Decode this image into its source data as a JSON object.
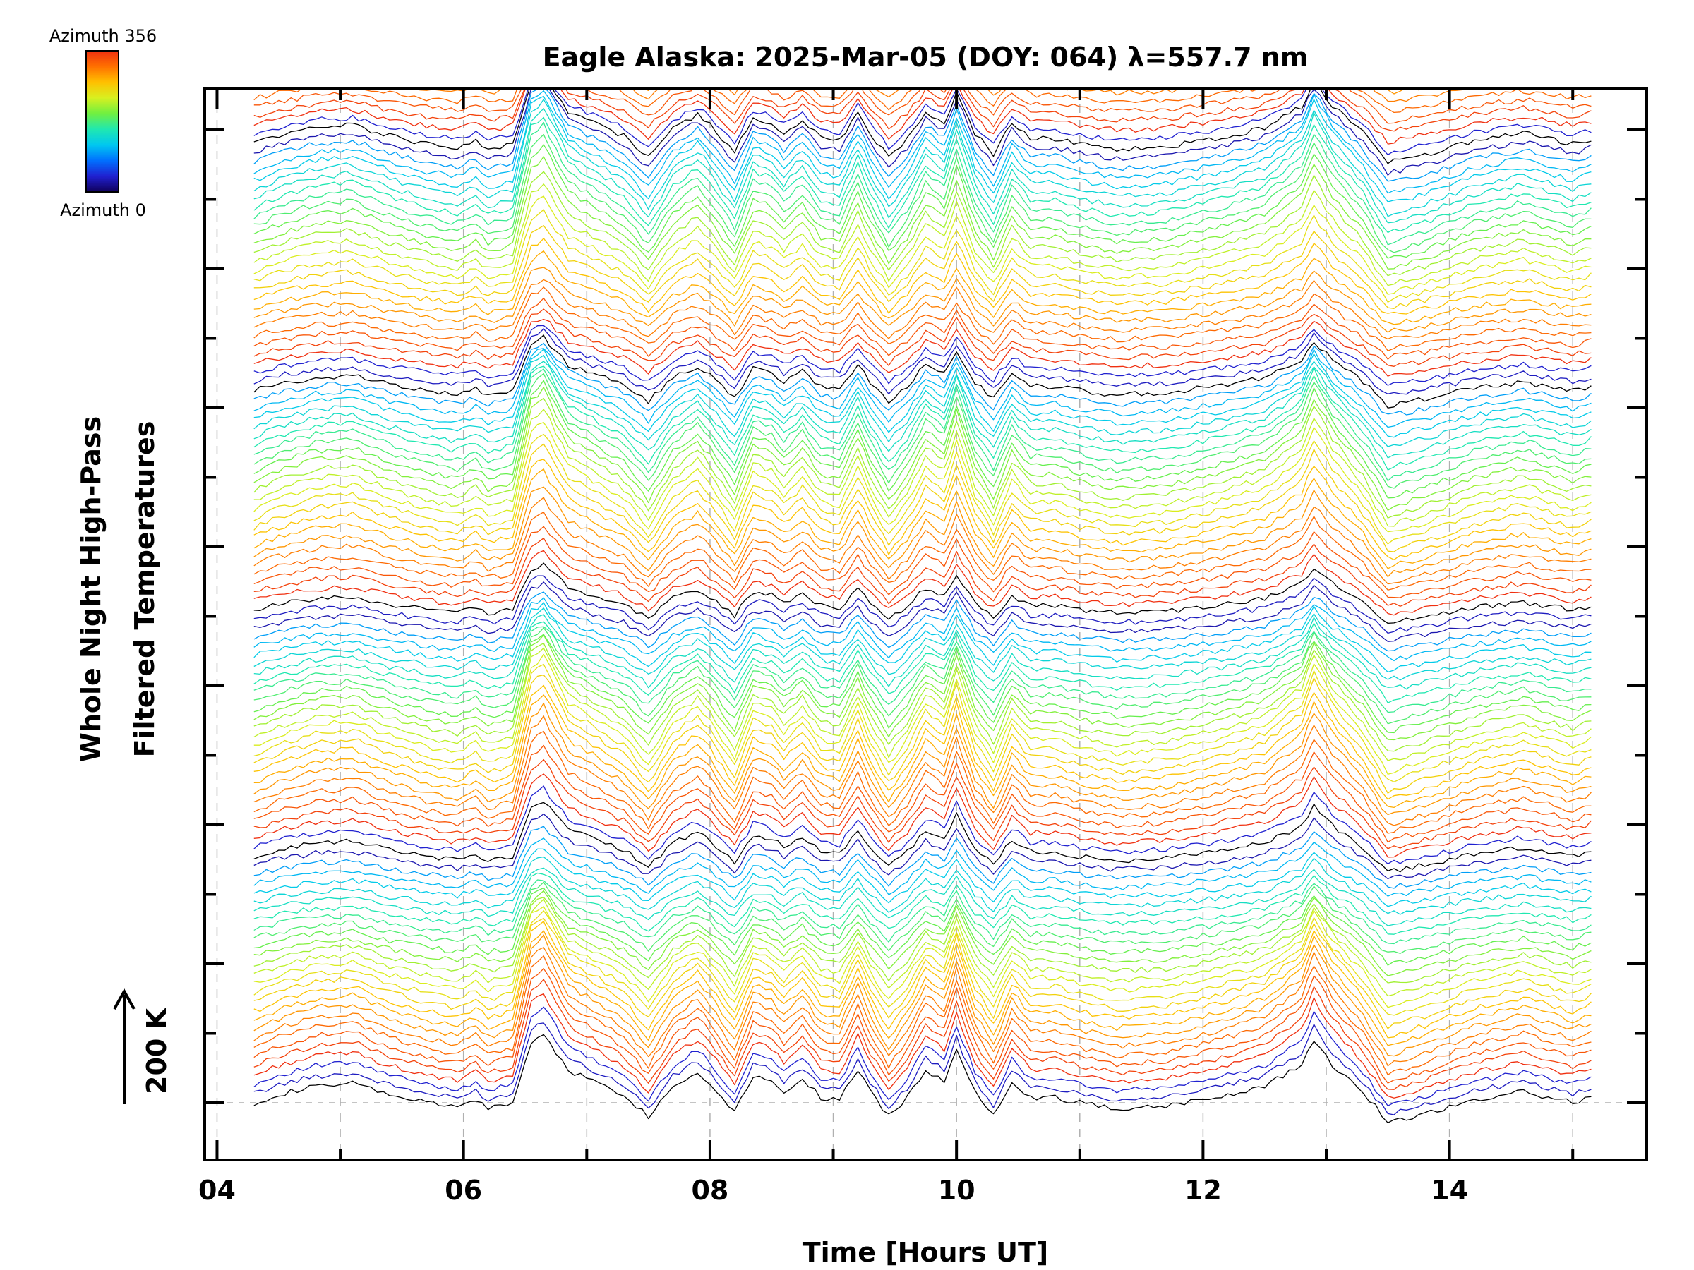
{
  "colors": {
    "background": "#ffffff",
    "axis": "#000000",
    "grid": "#b0b0b0",
    "colormap": [
      "#10005a",
      "#2020d0",
      "#0070ff",
      "#00c8f0",
      "#20e8b0",
      "#70f040",
      "#d8f020",
      "#ffc000",
      "#ff7000",
      "#f03010"
    ]
  },
  "colorbar": {
    "top_label": "Azimuth 356",
    "bottom_label": "Azimuth 0"
  },
  "chart_data": {
    "type": "line",
    "title": "Eagle Alaska: 2025-Mar-05 (DOY: 064) λ=557.7 nm",
    "xlabel": "Time [Hours UT]",
    "ylabel_line1": "Whole Night High-Pass",
    "ylabel_line2": "Filtered Temperatures",
    "scale_bar_label": "200 K",
    "scale_bar_value_K": 200,
    "xlim": [
      3.9,
      15.6
    ],
    "x_ticks": [
      4,
      6,
      8,
      10,
      12,
      14
    ],
    "x_tick_labels": [
      "04",
      "06",
      "08",
      "10",
      "12",
      "14"
    ],
    "grid": true,
    "legend": "colorbar top-left",
    "stack": {
      "n_traces": 130,
      "trace_offset_K": 16.7,
      "azimuth_range_deg": [
        0,
        356
      ],
      "n_groups": 5,
      "color_order": "blue, black, red, orange, yellow, green, cyan repeating per group"
    },
    "base_profile": {
      "x": [
        4.3,
        4.5,
        4.8,
        5.1,
        5.4,
        5.7,
        5.95,
        6.1,
        6.2,
        6.4,
        6.55,
        6.65,
        6.85,
        7.1,
        7.3,
        7.5,
        7.7,
        7.9,
        8.0,
        8.2,
        8.35,
        8.5,
        8.6,
        8.75,
        8.9,
        9.05,
        9.2,
        9.3,
        9.45,
        9.6,
        9.75,
        9.9,
        10.0,
        10.15,
        10.3,
        10.45,
        10.6,
        10.8,
        11.0,
        11.3,
        11.7,
        12.1,
        12.5,
        12.8,
        12.9,
        13.05,
        13.3,
        13.5,
        13.8,
        14.2,
        14.6,
        15.0,
        15.15
      ],
      "y": [
        0,
        15,
        30,
        35,
        15,
        0,
        -8,
        5,
        -10,
        0,
        110,
        125,
        60,
        35,
        15,
        -25,
        30,
        55,
        35,
        -15,
        50,
        40,
        20,
        45,
        10,
        5,
        60,
        20,
        -25,
        10,
        60,
        40,
        95,
        20,
        -20,
        40,
        10,
        10,
        0,
        -10,
        -5,
        10,
        30,
        70,
        115,
        70,
        20,
        -35,
        -20,
        5,
        20,
        0,
        10
      ]
    }
  }
}
